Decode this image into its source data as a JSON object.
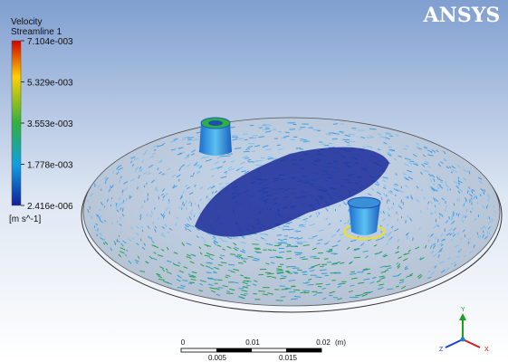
{
  "logo": "ANSYS",
  "legend": {
    "title": "Velocity",
    "subtitle": "Streamline 1",
    "labels": [
      "7.104e-003",
      "5.329e-003",
      "3.553e-003",
      "1.778e-003",
      "2.416e-006"
    ],
    "unit": "[m s^-1]"
  },
  "scale_bar": {
    "top_labels": [
      "0",
      "0.01",
      "0.02"
    ],
    "unit": "(m)",
    "bottom_labels": [
      "0.005",
      "0.015"
    ]
  },
  "triad": {
    "y": "Y",
    "z": "Z",
    "x": "X"
  }
}
